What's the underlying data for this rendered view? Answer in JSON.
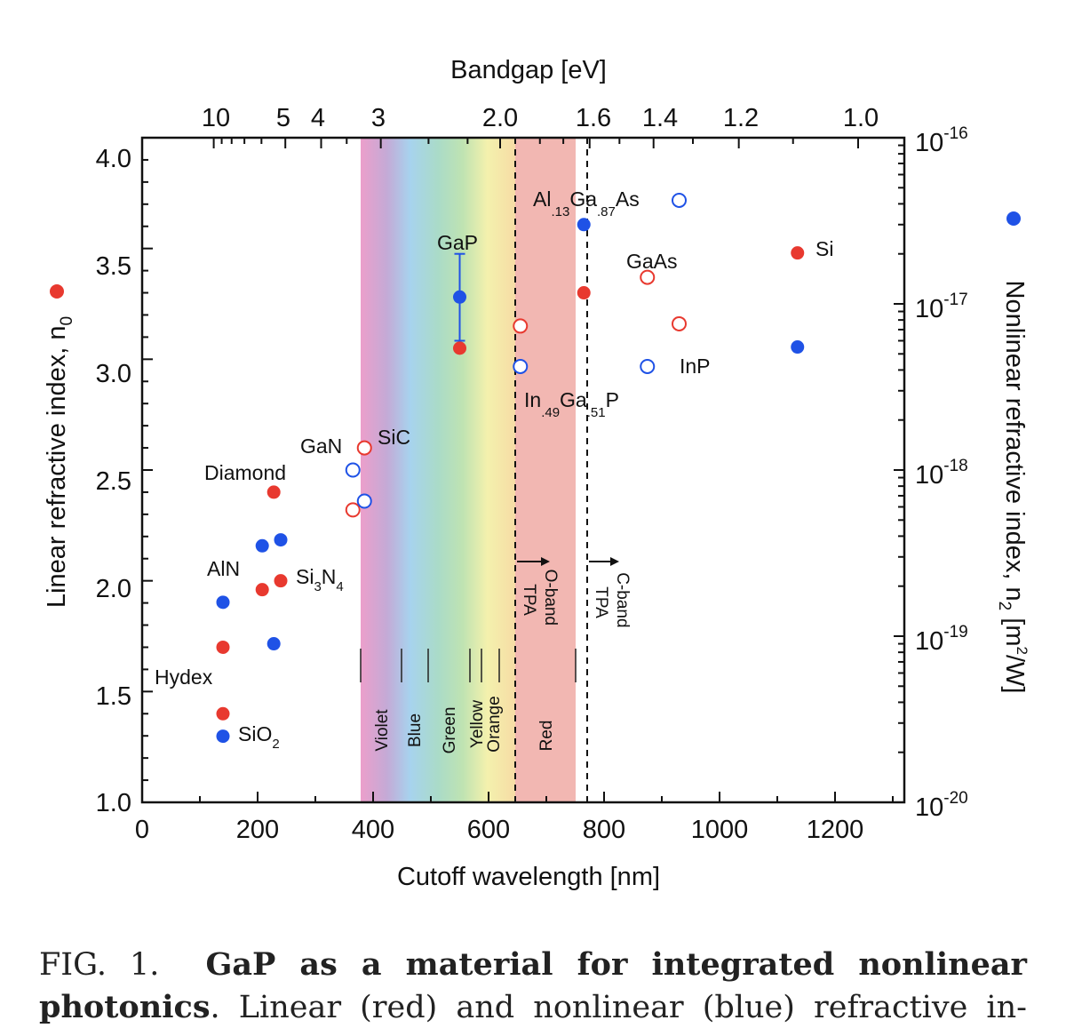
{
  "chart_data": {
    "type": "scatter",
    "xlabel": "Cutoff wavelength [nm]",
    "ylabel_left": "Linear refractive index, n",
    "ylabel_left_sub": "0",
    "ylabel_right_parts": [
      "Nonlinear refractive index, n",
      "2",
      " [m",
      "2",
      "/W]"
    ],
    "xlabel_top": "Bandgap [eV]",
    "xlim": [
      0,
      1320
    ],
    "ylim_left": [
      1.0,
      4.0
    ],
    "ylim_right": [
      1e-20,
      1e-16
    ],
    "right_axis_scale": "log",
    "x_ticks": [
      "0",
      "200",
      "400",
      "600",
      "800",
      "1000",
      "1200"
    ],
    "y_left_ticks": [
      "1.0",
      "1.5",
      "2.0",
      "2.5",
      "3.0",
      "3.5",
      "4.0"
    ],
    "y_right_ticks": [
      {
        "base": "10",
        "exp": "-20"
      },
      {
        "base": "10",
        "exp": "-19"
      },
      {
        "base": "10",
        "exp": "-18"
      },
      {
        "base": "10",
        "exp": "-17"
      },
      {
        "base": "10",
        "exp": "-16"
      }
    ],
    "top_ticks": [
      "10",
      "5",
      "4",
      "3",
      "2.0",
      "1.6",
      "1.4",
      "1.2",
      "1.0"
    ],
    "spectrum_bands": [
      "Violet",
      "Blue",
      "Green",
      "Yellow",
      "Orange",
      "Red"
    ],
    "annotations": [
      {
        "parts": [
          "O-band",
          "TPA"
        ]
      },
      {
        "parts": [
          "C-band",
          "TPA"
        ]
      }
    ],
    "series": [
      {
        "axis": "left",
        "color": "#e8392f",
        "points": [
          {
            "x": 140,
            "y": 1.4,
            "filled": true
          },
          {
            "x": 140,
            "y": 1.7,
            "filled": true
          },
          {
            "x": 208,
            "y": 1.96,
            "filled": true
          },
          {
            "x": 240,
            "y": 2.0,
            "filled": true
          },
          {
            "x": 228,
            "y": 2.4,
            "filled": true
          },
          {
            "x": 365,
            "y": 2.32,
            "filled": false
          },
          {
            "x": 385,
            "y": 2.6,
            "filled": false
          },
          {
            "x": 550,
            "y": 3.05,
            "filled": true
          },
          {
            "x": 655,
            "y": 3.15,
            "filled": false
          },
          {
            "x": 765,
            "y": 3.3,
            "filled": true
          },
          {
            "x": 875,
            "y": 3.37,
            "filled": false
          },
          {
            "x": 930,
            "y": 3.16,
            "filled": false
          },
          {
            "x": 1135,
            "y": 3.48,
            "filled": true
          }
        ]
      },
      {
        "axis": "right",
        "color": "#1f52e6",
        "points": [
          {
            "x": 140,
            "y": 2.5e-20,
            "filled": true
          },
          {
            "x": 140,
            "y": 1.6e-19,
            "filled": true
          },
          {
            "x": 228,
            "y": 9e-20,
            "filled": true
          },
          {
            "x": 208,
            "y": 3.5e-19,
            "filled": true
          },
          {
            "x": 240,
            "y": 3.8e-19,
            "filled": true
          },
          {
            "x": 365,
            "y": 1e-18,
            "filled": false
          },
          {
            "x": 385,
            "y": 6.5e-19,
            "filled": false
          },
          {
            "x": 550,
            "y": 1.1e-17,
            "filled": true,
            "error": [
              6e-18,
              2e-17
            ]
          },
          {
            "x": 655,
            "y": 4.2e-18,
            "filled": false
          },
          {
            "x": 765,
            "y": 3e-17,
            "filled": true
          },
          {
            "x": 875,
            "y": 4.2e-18,
            "filled": false
          },
          {
            "x": 930,
            "y": 4.2e-17,
            "filled": false
          },
          {
            "x": 1135,
            "y": 5.5e-18,
            "filled": true
          }
        ]
      }
    ],
    "material_labels": [
      {
        "parts": [
          "Al",
          ".13",
          "Ga",
          ".87",
          "As"
        ]
      },
      {
        "parts": [
          "GaP"
        ]
      },
      {
        "parts": [
          "GaAs"
        ]
      },
      {
        "parts": [
          "Si"
        ]
      },
      {
        "parts": [
          "InP"
        ]
      },
      {
        "parts": [
          "In",
          ".49",
          "Ga",
          ".51",
          "P"
        ]
      },
      {
        "parts": [
          "GaN"
        ]
      },
      {
        "parts": [
          "SiC"
        ]
      },
      {
        "parts": [
          "Diamond"
        ]
      },
      {
        "parts": [
          "AlN"
        ]
      },
      {
        "parts": [
          "Si",
          "3",
          "N",
          "4"
        ]
      },
      {
        "parts": [
          "Hydex"
        ]
      },
      {
        "parts": [
          "SiO",
          "2"
        ]
      }
    ]
  },
  "caption": {
    "label": "FIG. 1.",
    "bold_text": "GaP as a material for integrated nonlinear photonics",
    "text": ". Linear (red) and nonlinear (blue) refractive in-"
  }
}
